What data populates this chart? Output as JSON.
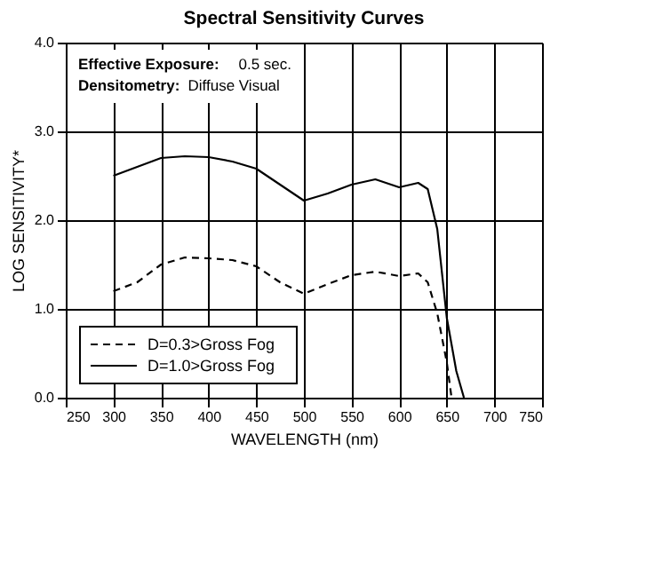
{
  "chart_data": {
    "type": "line",
    "title": "Spectral Sensitivity Curves",
    "xlabel": "WAVELENGTH (nm)",
    "ylabel": "LOG SENSITIVITY*",
    "annotations": [
      "Effective Exposure: 0.5 sec.",
      "Densitometry: Diffuse Visual"
    ],
    "series": [
      {
        "name": "D=0.3>Gross Fog",
        "color": "#000000",
        "line_style": "dashed",
        "x": [
          300,
          325,
          350,
          375,
          400,
          425,
          450,
          475,
          500,
          525,
          550,
          575,
          600,
          620,
          630,
          640,
          650,
          655
        ],
        "values": [
          1.2,
          1.3,
          1.5,
          1.58,
          1.57,
          1.55,
          1.48,
          1.3,
          1.17,
          1.28,
          1.38,
          1.42,
          1.37,
          1.4,
          1.3,
          0.95,
          0.4,
          0.0
        ]
      },
      {
        "name": "D=1.0>Gross Fog",
        "color": "#000000",
        "line_style": "solid",
        "x": [
          300,
          325,
          350,
          375,
          400,
          425,
          450,
          475,
          500,
          525,
          550,
          575,
          600,
          620,
          630,
          640,
          650,
          660,
          668
        ],
        "values": [
          2.5,
          2.6,
          2.7,
          2.72,
          2.71,
          2.66,
          2.58,
          2.4,
          2.22,
          2.3,
          2.4,
          2.46,
          2.37,
          2.42,
          2.35,
          1.9,
          0.9,
          0.3,
          0.0
        ]
      }
    ],
    "xlim": [
      250,
      750
    ],
    "xticks": [
      250,
      300,
      350,
      400,
      450,
      500,
      550,
      600,
      650,
      700,
      750
    ],
    "ylim": [
      0,
      4
    ],
    "yticks": [
      {
        "value": 0,
        "label": "0.0"
      },
      {
        "value": 1,
        "label": "1.0"
      },
      {
        "value": 2,
        "label": "2.0"
      },
      {
        "value": 3,
        "label": "3.0"
      },
      {
        "value": 4,
        "label": "4.0"
      }
    ],
    "grid": true,
    "legend": "bottom left",
    "marker": "none"
  }
}
